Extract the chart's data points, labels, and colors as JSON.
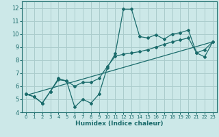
{
  "xlabel": "Humidex (Indice chaleur)",
  "bg_color": "#cce8e8",
  "grid_color": "#aacccc",
  "line_color": "#1a6b6b",
  "xlim": [
    -0.5,
    23.5
  ],
  "ylim": [
    4,
    12.5
  ],
  "xticks": [
    0,
    1,
    2,
    3,
    4,
    5,
    6,
    7,
    8,
    9,
    10,
    11,
    12,
    13,
    14,
    15,
    16,
    17,
    18,
    19,
    20,
    21,
    22,
    23
  ],
  "yticks": [
    4,
    5,
    6,
    7,
    8,
    9,
    10,
    11,
    12
  ],
  "series1_x": [
    0,
    1,
    2,
    3,
    4,
    5,
    6,
    7,
    8,
    9,
    10,
    11,
    12,
    13,
    14,
    15,
    16,
    17,
    18,
    19,
    20,
    21,
    22,
    23
  ],
  "series1_y": [
    5.4,
    5.2,
    4.7,
    5.6,
    6.5,
    6.4,
    4.4,
    5.0,
    4.7,
    5.4,
    7.4,
    8.5,
    11.9,
    11.9,
    9.8,
    9.7,
    9.95,
    9.6,
    10.0,
    10.1,
    10.3,
    8.55,
    8.25,
    9.4
  ],
  "series2_x": [
    0,
    1,
    2,
    3,
    4,
    5,
    6,
    7,
    8,
    9,
    10,
    11,
    12,
    13,
    14,
    15,
    16,
    17,
    18,
    19,
    20,
    21,
    22,
    23
  ],
  "series2_y": [
    5.4,
    5.2,
    4.7,
    5.6,
    6.6,
    6.4,
    6.0,
    6.3,
    6.3,
    6.6,
    7.5,
    8.3,
    8.45,
    8.55,
    8.65,
    8.8,
    9.0,
    9.2,
    9.4,
    9.55,
    9.7,
    8.55,
    8.8,
    9.4
  ],
  "series3_x": [
    0,
    23
  ],
  "series3_y": [
    5.3,
    9.4
  ]
}
